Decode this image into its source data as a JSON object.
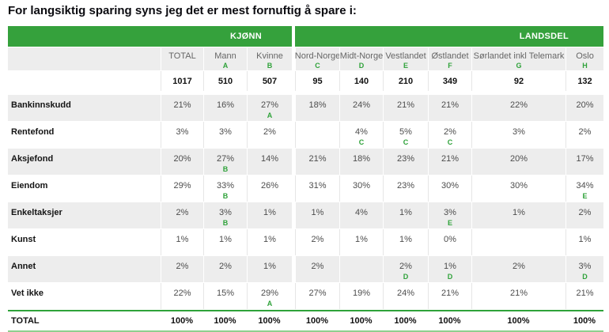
{
  "page_title": "For langsiktig sparing syns jeg det er mest fornuftig å spare i:",
  "colors": {
    "header_green": "#35A13C",
    "significance_green": "#2FA23A",
    "row_alt_gray": "#EDEDED",
    "total_top_border": "#2FA23A",
    "total_bottom_border": "#8FCF8F"
  },
  "chart_data": {
    "type": "table",
    "title": "For langsiktig sparing syns jeg det er mest fornuftig å spare i:",
    "column_groups": [
      {
        "label": "KJØNN",
        "columns": [
          "TOTAL",
          "Mann",
          "Kvinne"
        ]
      },
      {
        "label": "LANDSDEL",
        "columns": [
          "Nord-Norge",
          "Midt-Norge",
          "Vestlandet",
          "Østlandet",
          "Sørlandet inkl Telemark",
          "Oslo"
        ]
      }
    ],
    "columns": [
      {
        "label": "TOTAL",
        "letter": "",
        "count": "1017"
      },
      {
        "label": "Mann",
        "letter": "A",
        "count": "510"
      },
      {
        "label": "Kvinne",
        "letter": "B",
        "count": "507"
      },
      {
        "label": "Nord-Norge",
        "letter": "C",
        "count": "95"
      },
      {
        "label": "Midt-Norge",
        "letter": "D",
        "count": "140"
      },
      {
        "label": "Vestlandet",
        "letter": "E",
        "count": "210"
      },
      {
        "label": "Østlandet",
        "letter": "F",
        "count": "349"
      },
      {
        "label": "Sørlandet inkl Telemark",
        "letter": "G",
        "count": "92"
      },
      {
        "label": "Oslo",
        "letter": "H",
        "count": "132"
      }
    ],
    "rows": [
      {
        "label": "Bankinnskudd",
        "cells": [
          {
            "v": "21%"
          },
          {
            "v": "16%"
          },
          {
            "v": "27%",
            "sig": "A"
          },
          {
            "v": "18%"
          },
          {
            "v": "24%"
          },
          {
            "v": "21%"
          },
          {
            "v": "21%"
          },
          {
            "v": "22%"
          },
          {
            "v": "20%"
          }
        ]
      },
      {
        "label": "Rentefond",
        "cells": [
          {
            "v": "3%"
          },
          {
            "v": "3%"
          },
          {
            "v": "2%"
          },
          {
            "v": ""
          },
          {
            "v": "4%",
            "sig": "C"
          },
          {
            "v": "5%",
            "sig": "C"
          },
          {
            "v": "2%",
            "sig": "C"
          },
          {
            "v": "3%"
          },
          {
            "v": "2%"
          }
        ]
      },
      {
        "label": "Aksjefond",
        "cells": [
          {
            "v": "20%"
          },
          {
            "v": "27%",
            "sig": "B"
          },
          {
            "v": "14%"
          },
          {
            "v": "21%"
          },
          {
            "v": "18%"
          },
          {
            "v": "23%"
          },
          {
            "v": "21%"
          },
          {
            "v": "20%"
          },
          {
            "v": "17%"
          }
        ]
      },
      {
        "label": "Eiendom",
        "cells": [
          {
            "v": "29%"
          },
          {
            "v": "33%",
            "sig": "B"
          },
          {
            "v": "26%"
          },
          {
            "v": "31%"
          },
          {
            "v": "30%"
          },
          {
            "v": "23%"
          },
          {
            "v": "30%"
          },
          {
            "v": "30%"
          },
          {
            "v": "34%",
            "sig": "E"
          }
        ]
      },
      {
        "label": "Enkeltaksjer",
        "cells": [
          {
            "v": "2%"
          },
          {
            "v": "3%",
            "sig": "B"
          },
          {
            "v": "1%"
          },
          {
            "v": "1%"
          },
          {
            "v": "4%"
          },
          {
            "v": "1%"
          },
          {
            "v": "3%",
            "sig": "E"
          },
          {
            "v": "1%"
          },
          {
            "v": "2%"
          }
        ]
      },
      {
        "label": "Kunst",
        "cells": [
          {
            "v": "1%"
          },
          {
            "v": "1%"
          },
          {
            "v": "1%"
          },
          {
            "v": "2%"
          },
          {
            "v": "1%"
          },
          {
            "v": "1%"
          },
          {
            "v": "0%"
          },
          {
            "v": ""
          },
          {
            "v": "1%"
          }
        ]
      },
      {
        "label": "Annet",
        "cells": [
          {
            "v": "2%"
          },
          {
            "v": "2%"
          },
          {
            "v": "1%"
          },
          {
            "v": "2%"
          },
          {
            "v": ""
          },
          {
            "v": "2%",
            "sig": "D"
          },
          {
            "v": "1%",
            "sig": "D"
          },
          {
            "v": "2%"
          },
          {
            "v": "3%",
            "sig": "D"
          }
        ]
      },
      {
        "label": "Vet ikke",
        "cells": [
          {
            "v": "22%"
          },
          {
            "v": "15%"
          },
          {
            "v": "29%",
            "sig": "A"
          },
          {
            "v": "27%"
          },
          {
            "v": "19%"
          },
          {
            "v": "24%"
          },
          {
            "v": "21%"
          },
          {
            "v": "21%"
          },
          {
            "v": "21%"
          }
        ]
      }
    ],
    "total_row": {
      "label": "TOTAL",
      "values": [
        "100%",
        "100%",
        "100%",
        "100%",
        "100%",
        "100%",
        "100%",
        "100%",
        "100%"
      ]
    }
  }
}
